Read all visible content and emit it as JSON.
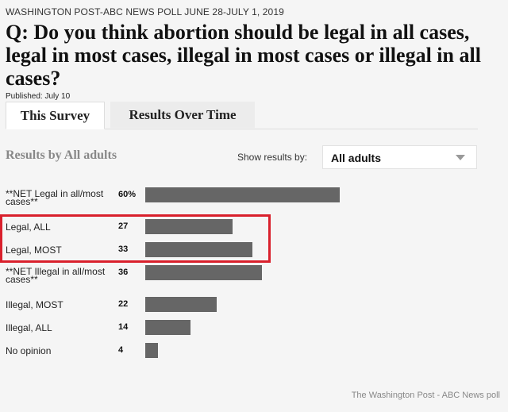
{
  "header": {
    "poll_source": "WASHINGTON POST-ABC NEWS POLL JUNE 28-JULY 1, 2019",
    "question": "Q: Do you think abortion should be legal in all cases, legal in most cases, illegal in most cases or illegal in all cases?",
    "published": "Published: July 10"
  },
  "tabs": [
    {
      "label": "This Survey",
      "active": true
    },
    {
      "label": "Results Over Time",
      "active": false
    }
  ],
  "filter": {
    "results_by_label": "Results by All adults",
    "show_results_label": "Show results by:",
    "selected": "All adults"
  },
  "chart_data": {
    "type": "bar",
    "title": "Results by All adults",
    "categories": [
      "**NET Legal in all/most cases**",
      "Legal, ALL",
      "Legal, MOST",
      "**NET Illegal in all/most cases**",
      "Illegal, MOST",
      "Illegal, ALL",
      "No opinion"
    ],
    "values": [
      60,
      27,
      33,
      36,
      22,
      14,
      4
    ],
    "value_labels": [
      "60%",
      "27",
      "33",
      "36",
      "22",
      "14",
      "4"
    ],
    "label_lines": [
      [
        "**NET Legal in all/most",
        "cases**"
      ],
      [
        "Legal, ALL"
      ],
      [
        "Legal, MOST"
      ],
      [
        "**NET Illegal in all/most",
        "cases**"
      ],
      [
        "Illegal, MOST"
      ],
      [
        "Illegal, ALL"
      ],
      [
        "No opinion"
      ]
    ],
    "bar_color": "#666666",
    "highlight_color": "#d9202c"
  },
  "footer": {
    "credit": "The Washington Post - ABC News poll"
  }
}
